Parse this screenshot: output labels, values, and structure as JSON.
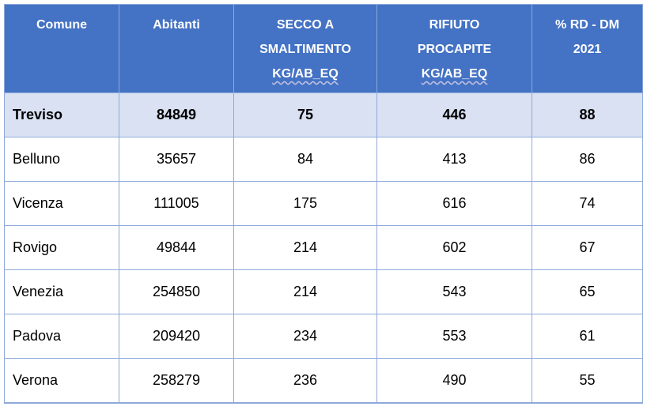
{
  "table": {
    "header": [
      [
        "Comune"
      ],
      [
        "Abitanti"
      ],
      [
        "SECCO A",
        "SMALTIMENTO",
        "KG/AB_EQ"
      ],
      [
        "RIFIUTO",
        "PROCAPITE",
        "KG/AB_EQ"
      ],
      [
        "% RD - DM",
        "2021"
      ]
    ],
    "rows": [
      [
        "Treviso",
        84849,
        75,
        446,
        88
      ],
      [
        "Belluno",
        35657,
        84,
        413,
        86
      ],
      [
        "Vicenza",
        111005,
        175,
        616,
        74
      ],
      [
        "Rovigo",
        49844,
        214,
        602,
        67
      ],
      [
        "Venezia",
        254850,
        214,
        543,
        65
      ],
      [
        "Padova",
        209420,
        234,
        553,
        61
      ],
      [
        "Verona",
        258279,
        236,
        490,
        55
      ]
    ]
  }
}
